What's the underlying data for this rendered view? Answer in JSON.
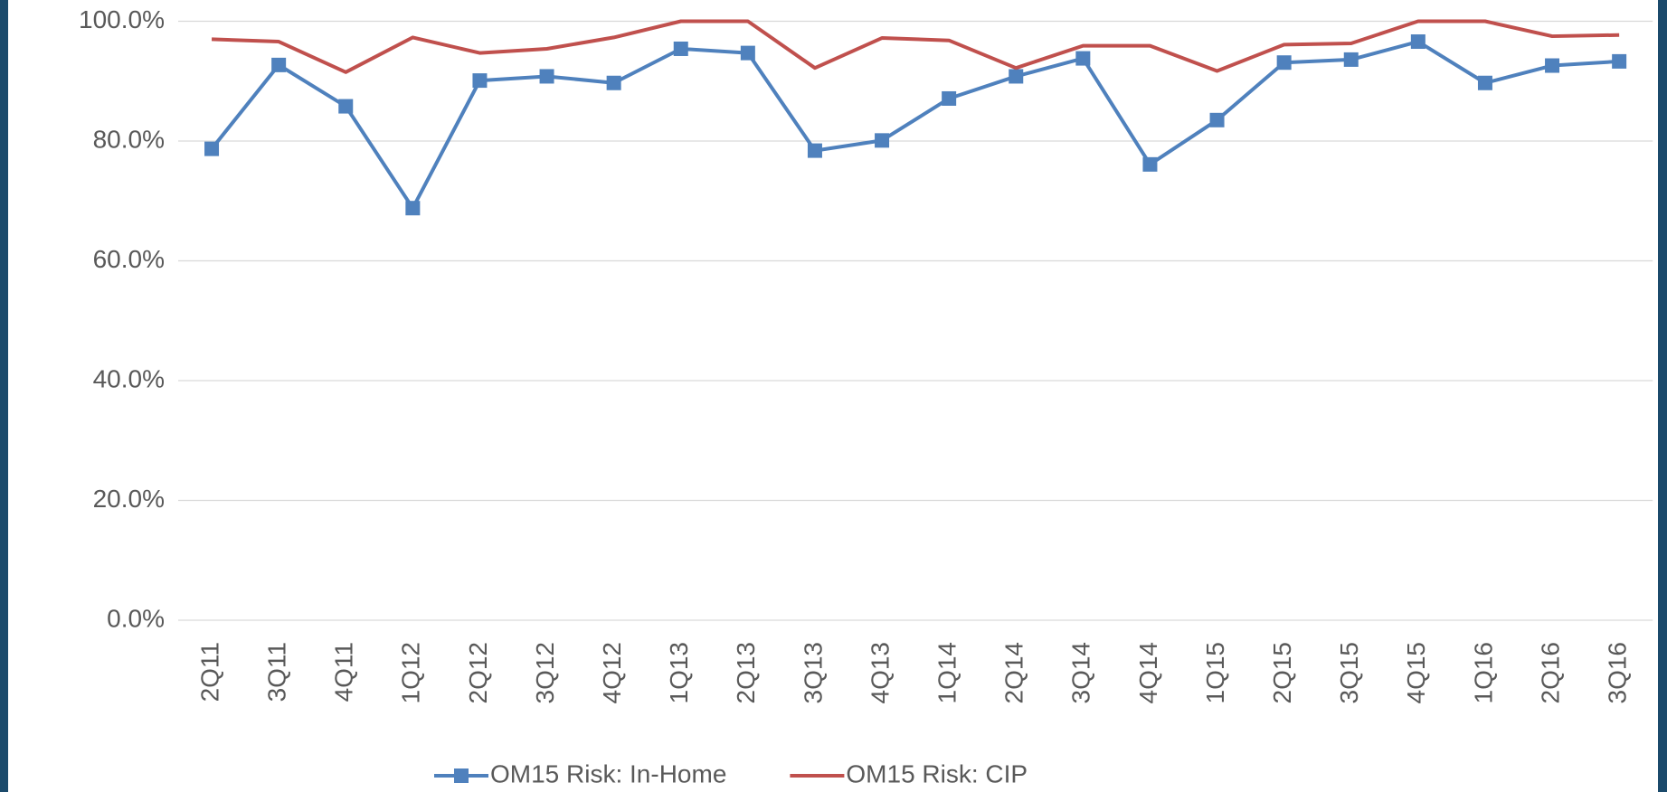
{
  "chart_data": {
    "type": "line",
    "categories": [
      "2Q11",
      "3Q11",
      "4Q11",
      "1Q12",
      "2Q12",
      "3Q12",
      "4Q12",
      "1Q13",
      "2Q13",
      "3Q13",
      "4Q13",
      "1Q14",
      "2Q14",
      "3Q14",
      "4Q14",
      "1Q15",
      "2Q15",
      "3Q15",
      "4Q15",
      "1Q16",
      "2Q16",
      "3Q16"
    ],
    "series": [
      {
        "name": "OM15 Risk: In-Home",
        "color": "#4f81bd",
        "marker": "square",
        "values": [
          78.7,
          92.7,
          85.8,
          68.8,
          90.1,
          90.8,
          89.7,
          95.4,
          94.7,
          78.4,
          80.1,
          87.1,
          90.8,
          93.8,
          76.1,
          83.5,
          93.1,
          93.6,
          96.6,
          89.7,
          92.6,
          93.3
        ]
      },
      {
        "name": "OM15 Risk: CIP",
        "color": "#c0504d",
        "values": [
          97.0,
          96.6,
          91.5,
          97.3,
          94.7,
          95.4,
          97.3,
          100,
          100,
          92.2,
          97.2,
          96.8,
          92.2,
          95.9,
          95.9,
          91.7,
          96.1,
          96.3,
          100,
          100,
          97.5,
          97.7
        ]
      }
    ],
    "ylim": [
      0,
      100
    ],
    "yticks": [
      {
        "value": 0,
        "label": "0.0%"
      },
      {
        "value": 20,
        "label": "20.0%"
      },
      {
        "value": 40,
        "label": "40.0%"
      },
      {
        "value": 60,
        "label": "60.0%"
      },
      {
        "value": 80,
        "label": "80.0%"
      },
      {
        "value": 100,
        "label": "100.0%"
      }
    ],
    "grid": true,
    "legend": "bottom"
  }
}
